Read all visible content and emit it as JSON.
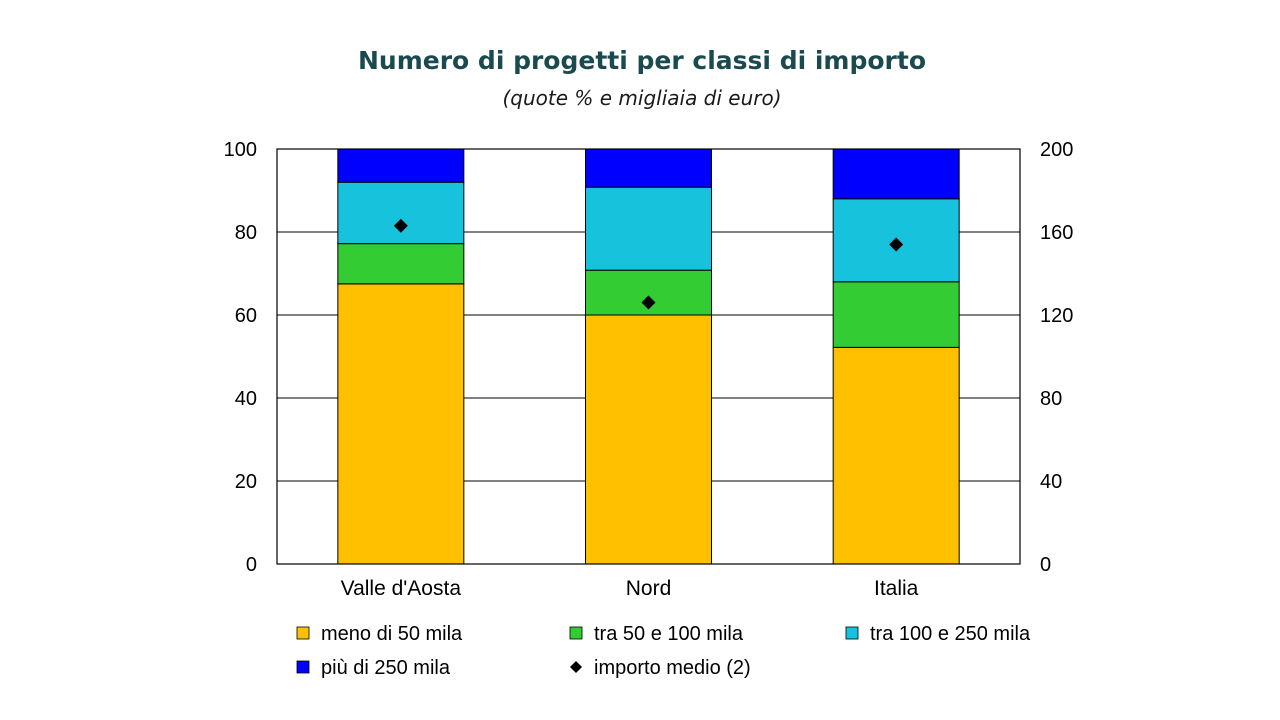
{
  "chart_data": {
    "type": "bar",
    "stacked": true,
    "title": "Numero di progetti per classi di importo",
    "subtitle": "(quote % e migliaia di euro)",
    "categories": [
      "Valle d'Aosta",
      "Nord",
      "Italia"
    ],
    "series": [
      {
        "name": "meno di 50 mila",
        "values": [
          67.5,
          60.0,
          52.2
        ],
        "color": "#FFC000"
      },
      {
        "name": "tra 50 e 100 mila",
        "values": [
          9.7,
          10.8,
          15.8
        ],
        "color": "#33CC33"
      },
      {
        "name": "tra 100 e 250 mila",
        "values": [
          14.8,
          20.0,
          20.0
        ],
        "color": "#17C3DC"
      },
      {
        "name": "più di 250 mila",
        "values": [
          8.0,
          9.2,
          12.0
        ],
        "color": "#0000FF"
      }
    ],
    "secondary_series": {
      "name": "importo medio (2)",
      "type": "scatter",
      "marker": "diamond",
      "axis": "right",
      "values": [
        163,
        126,
        154
      ],
      "color": "#000000"
    },
    "ylim": [
      0,
      100
    ],
    "y_ticks": [
      "0",
      "20",
      "40",
      "60",
      "80",
      "100"
    ],
    "y2lim": [
      0,
      200
    ],
    "y2_ticks": [
      "0",
      "40",
      "80",
      "120",
      "160",
      "200"
    ],
    "grid": true,
    "legend_position": "bottom"
  }
}
